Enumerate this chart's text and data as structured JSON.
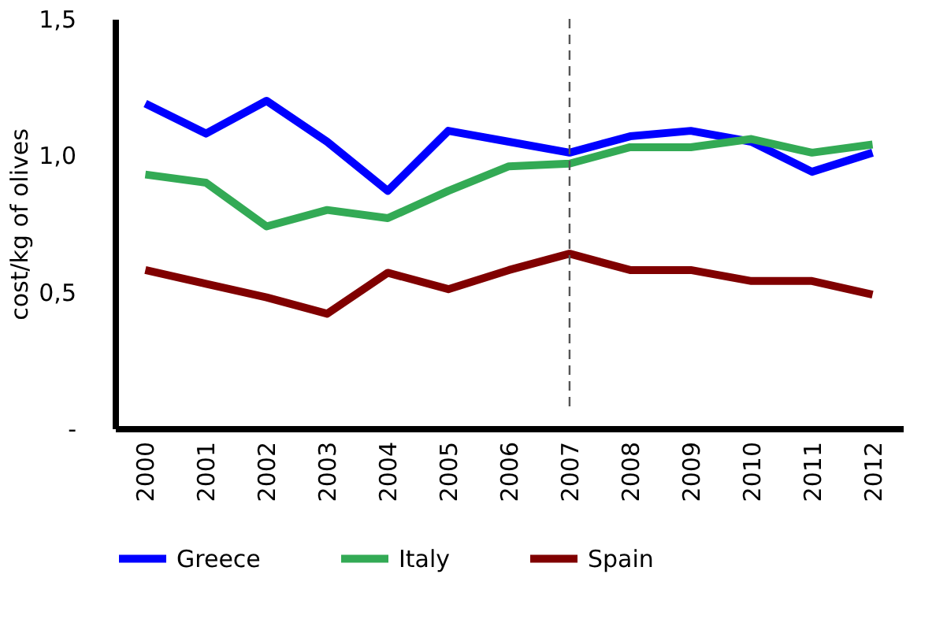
{
  "chart_data": {
    "type": "line",
    "ylabel": "cost/kg of olives",
    "categories": [
      "2000",
      "2001",
      "2002",
      "2003",
      "2004",
      "2005",
      "2006",
      "2007",
      "2008",
      "2009",
      "2010",
      "2011",
      "2012"
    ],
    "series": [
      {
        "name": "Greece",
        "color": "#0000ff",
        "values": [
          1.19,
          1.08,
          1.2,
          1.05,
          0.87,
          1.09,
          1.05,
          1.01,
          1.07,
          1.09,
          1.05,
          0.94,
          1.01
        ]
      },
      {
        "name": "Italy",
        "color": "#33aa55",
        "values": [
          0.93,
          0.9,
          0.74,
          0.8,
          0.77,
          0.87,
          0.96,
          0.97,
          1.03,
          1.03,
          1.06,
          1.01,
          1.04
        ]
      },
      {
        "name": "Spain",
        "color": "#800000",
        "values": [
          0.58,
          0.53,
          0.48,
          0.42,
          0.57,
          0.51,
          0.58,
          0.64,
          0.58,
          0.58,
          0.54,
          0.54,
          0.49
        ]
      }
    ],
    "ylim": [
      0,
      1.5
    ],
    "yticks": [
      {
        "value": 0,
        "label": "-"
      },
      {
        "value": 0.5,
        "label": "0,5"
      },
      {
        "value": 1.0,
        "label": "1,0"
      },
      {
        "value": 1.5,
        "label": "1,5"
      }
    ],
    "ref_lines": [
      {
        "axis": "x",
        "value": "2007",
        "color": "#555555",
        "line_style": "dashed"
      }
    ],
    "legend": "bottom",
    "grid": false,
    "line_style": "solid",
    "marker": "none"
  }
}
